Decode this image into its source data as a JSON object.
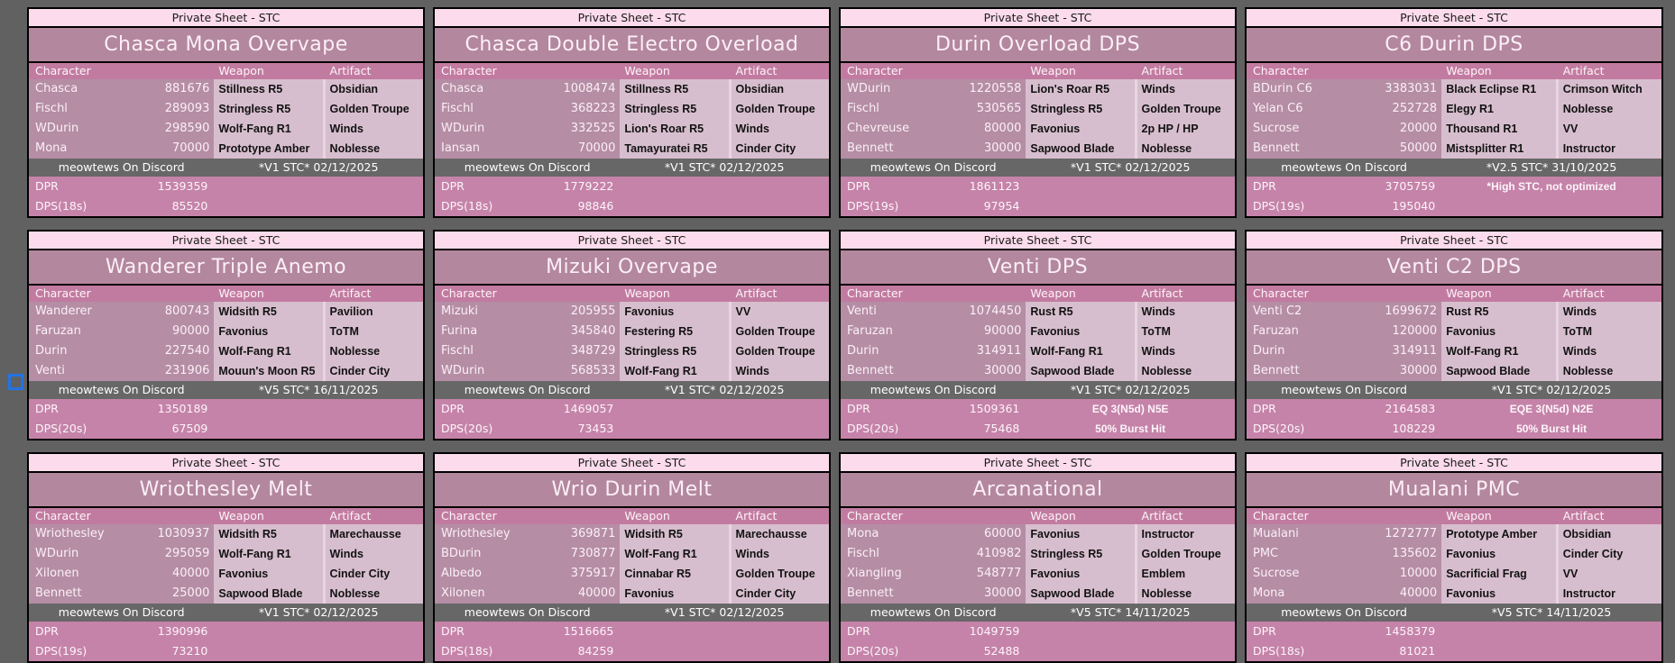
{
  "colors": {
    "page_background": "#616161",
    "sheet_label_bg": "#FCDCEC",
    "title_bg": "#B3879E",
    "table_header_bg": "#C27BA0",
    "character_col_bg": "#B58DA5",
    "item_col_bg": "#D7BECE",
    "footer_bg": "#676767",
    "metric_row_bg": "#C583A9",
    "selection_outline": "#2273E6"
  },
  "shared": {
    "sheet_label": "Private Sheet - STC",
    "credit": "meowtews On Discord",
    "dpr_label": "DPR",
    "columns": {
      "character": "Character",
      "weapon": "Weapon",
      "artifact": "Artifact"
    }
  },
  "cards": [
    {
      "title": "Chasca Mona Overvape",
      "rows": [
        {
          "character": "Chasca",
          "value": "881676",
          "weapon": "Stillness R5",
          "artifact": "Obsidian"
        },
        {
          "character": "Fischl",
          "value": "289093",
          "weapon": "Stringless R5",
          "artifact": "Golden Troupe"
        },
        {
          "character": "WDurin",
          "value": "298590",
          "weapon": "Wolf-Fang R1",
          "artifact": "Winds"
        },
        {
          "character": "Mona",
          "value": "70000",
          "weapon": "Prototype Amber",
          "artifact": "Noblesse"
        }
      ],
      "version": "*V1 STC* 02/12/2025",
      "dpr_value": "1539359",
      "dpr_note": "",
      "dps_label": "DPS(18s)",
      "dps_value": "85520",
      "dps_note": ""
    },
    {
      "title": "Chasca Double Electro Overload",
      "rows": [
        {
          "character": "Chasca",
          "value": "1008474",
          "weapon": "Stillness R5",
          "artifact": "Obsidian"
        },
        {
          "character": "Fischl",
          "value": "368223",
          "weapon": "Stringless R5",
          "artifact": "Golden Troupe"
        },
        {
          "character": "WDurin",
          "value": "332525",
          "weapon": "Lion's Roar R5",
          "artifact": "Winds"
        },
        {
          "character": "Iansan",
          "value": "70000",
          "weapon": "Tamayuratei R5",
          "artifact": "Cinder City"
        }
      ],
      "version": "*V1 STC* 02/12/2025",
      "dpr_value": "1779222",
      "dpr_note": "",
      "dps_label": "DPS(18s)",
      "dps_value": "98846",
      "dps_note": ""
    },
    {
      "title": "Durin Overload DPS",
      "rows": [
        {
          "character": "WDurin",
          "value": "1220558",
          "weapon": "Lion's Roar R5",
          "artifact": "Winds"
        },
        {
          "character": "Fischl",
          "value": "530565",
          "weapon": "Stringless R5",
          "artifact": "Golden Troupe"
        },
        {
          "character": "Chevreuse",
          "value": "80000",
          "weapon": "Favonius",
          "artifact": "2p HP / HP"
        },
        {
          "character": "Bennett",
          "value": "30000",
          "weapon": "Sapwood Blade",
          "artifact": "Noblesse"
        }
      ],
      "version": "*V1 STC* 02/12/2025",
      "dpr_value": "1861123",
      "dpr_note": "",
      "dps_label": "DPS(19s)",
      "dps_value": "97954",
      "dps_note": ""
    },
    {
      "title": "C6 Durin DPS",
      "rows": [
        {
          "character": "BDurin C6",
          "value": "3383031",
          "weapon": "Black Eclipse R1",
          "artifact": "Crimson Witch"
        },
        {
          "character": "Yelan C6",
          "value": "252728",
          "weapon": "Elegy R1",
          "artifact": "Noblesse"
        },
        {
          "character": "Sucrose",
          "value": "20000",
          "weapon": "Thousand R1",
          "artifact": "VV"
        },
        {
          "character": "Bennett",
          "value": "50000",
          "weapon": "Mistsplitter R1",
          "artifact": "Instructor"
        }
      ],
      "version": "*V2.5 STC* 31/10/2025",
      "dpr_value": "3705759",
      "dpr_note": "*High STC, not optimized",
      "dps_label": "DPS(19s)",
      "dps_value": "195040",
      "dps_note": ""
    },
    {
      "title": "Wanderer Triple Anemo",
      "rows": [
        {
          "character": "Wanderer",
          "value": "800743",
          "weapon": "Widsith R5",
          "artifact": "Pavilion"
        },
        {
          "character": "Faruzan",
          "value": "90000",
          "weapon": "Favonius",
          "artifact": "ToTM"
        },
        {
          "character": "Durin",
          "value": "227540",
          "weapon": "Wolf-Fang R1",
          "artifact": "Noblesse"
        },
        {
          "character": "Venti",
          "value": "231906",
          "weapon": "Mouun's Moon R5",
          "artifact": "Cinder City"
        }
      ],
      "version": "*V5 STC* 16/11/2025",
      "dpr_value": "1350189",
      "dpr_note": "",
      "dps_label": "DPS(20s)",
      "dps_value": "67509",
      "dps_note": ""
    },
    {
      "title": "Mizuki Overvape",
      "rows": [
        {
          "character": "Mizuki",
          "value": "205955",
          "weapon": "Favonius",
          "artifact": "VV"
        },
        {
          "character": "Furina",
          "value": "345840",
          "weapon": "Festering R5",
          "artifact": "Golden Troupe"
        },
        {
          "character": "Fischl",
          "value": "348729",
          "weapon": "Stringless R5",
          "artifact": "Golden Troupe"
        },
        {
          "character": "WDurin",
          "value": "568533",
          "weapon": "Wolf-Fang R1",
          "artifact": "Winds"
        }
      ],
      "version": "*V1 STC* 02/12/2025",
      "dpr_value": "1469057",
      "dpr_note": "",
      "dps_label": "DPS(20s)",
      "dps_value": "73453",
      "dps_note": ""
    },
    {
      "title": "Venti DPS",
      "rows": [
        {
          "character": "Venti",
          "value": "1074450",
          "weapon": "Rust R5",
          "artifact": "Winds"
        },
        {
          "character": "Faruzan",
          "value": "90000",
          "weapon": "Favonius",
          "artifact": "ToTM"
        },
        {
          "character": "Durin",
          "value": "314911",
          "weapon": "Wolf-Fang R1",
          "artifact": "Winds"
        },
        {
          "character": "Bennett",
          "value": "30000",
          "weapon": "Sapwood Blade",
          "artifact": "Noblesse"
        }
      ],
      "version": "*V1 STC* 02/12/2025",
      "dpr_value": "1509361",
      "dpr_note": "EQ 3(N5d) N5E",
      "dps_label": "DPS(20s)",
      "dps_value": "75468",
      "dps_note": "50% Burst Hit"
    },
    {
      "title": "Venti C2 DPS",
      "rows": [
        {
          "character": "Venti C2",
          "value": "1699672",
          "weapon": "Rust R5",
          "artifact": "Winds"
        },
        {
          "character": "Faruzan",
          "value": "120000",
          "weapon": "Favonius",
          "artifact": "ToTM"
        },
        {
          "character": "Durin",
          "value": "314911",
          "weapon": "Wolf-Fang R1",
          "artifact": "Winds"
        },
        {
          "character": "Bennett",
          "value": "30000",
          "weapon": "Sapwood Blade",
          "artifact": "Noblesse"
        }
      ],
      "version": "*V1 STC* 02/12/2025",
      "dpr_value": "2164583",
      "dpr_note": "EQE 3(N5d) N2E",
      "dps_label": "DPS(20s)",
      "dps_value": "108229",
      "dps_note": "50% Burst Hit"
    },
    {
      "title": "Wriothesley Melt",
      "rows": [
        {
          "character": "Wriothesley",
          "value": "1030937",
          "weapon": "Widsith R5",
          "artifact": "Marechausse"
        },
        {
          "character": "WDurin",
          "value": "295059",
          "weapon": "Wolf-Fang R1",
          "artifact": "Winds"
        },
        {
          "character": "Xilonen",
          "value": "40000",
          "weapon": "Favonius",
          "artifact": "Cinder City"
        },
        {
          "character": "Bennett",
          "value": "25000",
          "weapon": "Sapwood Blade",
          "artifact": "Noblesse"
        }
      ],
      "version": "*V1 STC* 02/12/2025",
      "dpr_value": "1390996",
      "dpr_note": "",
      "dps_label": "DPS(19s)",
      "dps_value": "73210",
      "dps_note": ""
    },
    {
      "title": "Wrio Durin Melt",
      "rows": [
        {
          "character": "Wriothesley",
          "value": "369871",
          "weapon": "Widsith R5",
          "artifact": "Marechausse"
        },
        {
          "character": "BDurin",
          "value": "730877",
          "weapon": "Wolf-Fang R1",
          "artifact": "Winds"
        },
        {
          "character": "Albedo",
          "value": "375917",
          "weapon": "Cinnabar R5",
          "artifact": "Golden Troupe"
        },
        {
          "character": "Xilonen",
          "value": "40000",
          "weapon": "Favonius",
          "artifact": "Cinder City"
        }
      ],
      "version": "*V1 STC* 02/12/2025",
      "dpr_value": "1516665",
      "dpr_note": "",
      "dps_label": "DPS(18s)",
      "dps_value": "84259",
      "dps_note": ""
    },
    {
      "title": "Arcanational",
      "rows": [
        {
          "character": "Mona",
          "value": "60000",
          "weapon": "Favonius",
          "artifact": "Instructor"
        },
        {
          "character": "Fischl",
          "value": "410982",
          "weapon": "Stringless R5",
          "artifact": "Golden Troupe"
        },
        {
          "character": "Xiangling",
          "value": "548777",
          "weapon": "Favonius",
          "artifact": "Emblem"
        },
        {
          "character": "Bennett",
          "value": "30000",
          "weapon": "Sapwood Blade",
          "artifact": "Noblesse"
        }
      ],
      "version": "*V5 STC* 14/11/2025",
      "dpr_value": "1049759",
      "dpr_note": "",
      "dps_label": "DPS(20s)",
      "dps_value": "52488",
      "dps_note": ""
    },
    {
      "title": "Mualani PMC",
      "rows": [
        {
          "character": "Mualani",
          "value": "1272777",
          "weapon": "Prototype Amber",
          "artifact": "Obsidian"
        },
        {
          "character": "PMC",
          "value": "135602",
          "weapon": "Favonius",
          "artifact": "Cinder City"
        },
        {
          "character": "Sucrose",
          "value": "10000",
          "weapon": "Sacrificial Frag",
          "artifact": "VV"
        },
        {
          "character": "Mona",
          "value": "40000",
          "weapon": "Favonius",
          "artifact": "Instructor"
        }
      ],
      "version": "*V5 STC* 14/11/2025",
      "dpr_value": "1458379",
      "dpr_note": "",
      "dps_label": "DPS(18s)",
      "dps_value": "81021",
      "dps_note": ""
    }
  ]
}
